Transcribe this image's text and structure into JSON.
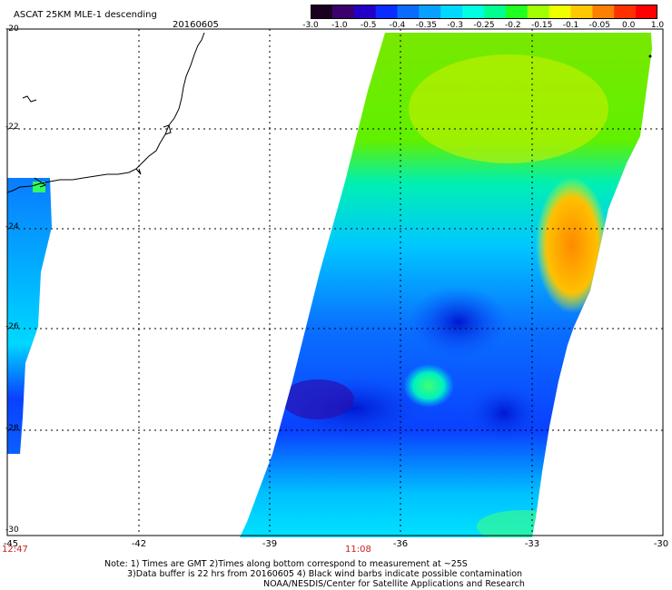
{
  "header": {
    "title": "ASCAT 25KM MLE-1 descending",
    "date": "20160605"
  },
  "colorbar": {
    "colors": [
      "#1a0020",
      "#3c006e",
      "#2200c8",
      "#0a2cff",
      "#0a6cff",
      "#0aa0ff",
      "#00d8ff",
      "#00ffe0",
      "#00ff90",
      "#20ff20",
      "#a0ff00",
      "#f0ff00",
      "#ffc800",
      "#ff8000",
      "#ff3000",
      "#ff0000"
    ],
    "labels": [
      "-3.0",
      "-1.0",
      "-0.5",
      "-0.4",
      "-0.35",
      "-0.3",
      "-0.25",
      "-0.2",
      "-0.15",
      "-0.1",
      "-0.05",
      "0.0",
      "1.0"
    ]
  },
  "axes": {
    "lon_labels": [
      "-45",
      "-42",
      "-39",
      "-36",
      "-33",
      "-30"
    ],
    "lat_labels": [
      "-20",
      "-22",
      "-24",
      "-26",
      "-28",
      "-30"
    ]
  },
  "times": [
    {
      "label": "12:47"
    },
    {
      "label": "11:08"
    }
  ],
  "notes": {
    "line1": "Note: 1) Times are GMT 2)Times along bottom correspond to measurement at ~25S",
    "line2": "3)Data buffer is 22 hrs from 20160605 4) Black wind barbs indicate possible contamination",
    "line3": "NOAA/NESDIS/Center for Satellite Applications and Research"
  }
}
